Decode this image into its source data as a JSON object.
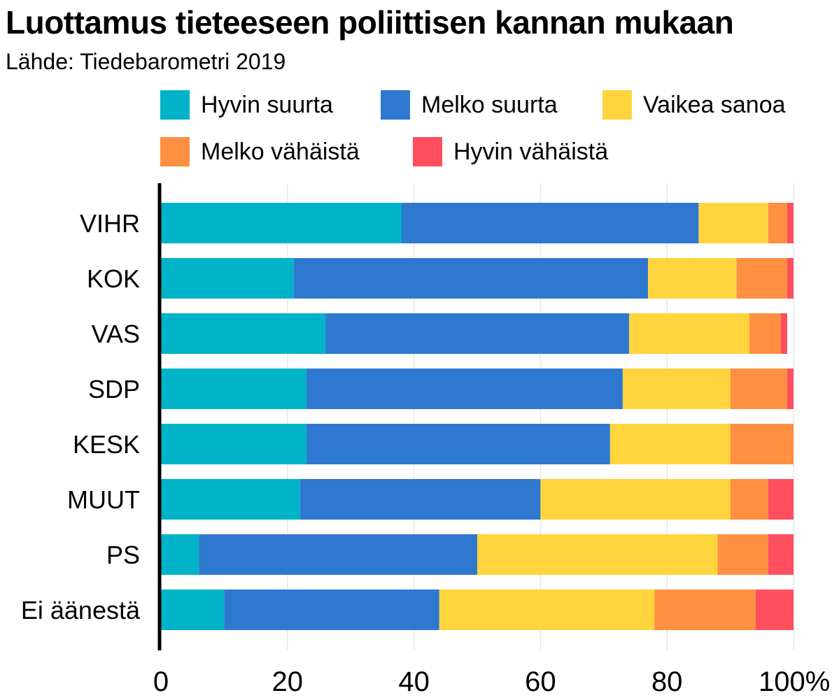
{
  "chart_data": {
    "type": "bar",
    "orientation": "horizontal",
    "stacked": true,
    "title": "Luottamus tieteeseen poliittisen kannan mukaan",
    "subtitle": "Lähde: Tiedebarometri 2019",
    "categories": [
      "VIHR",
      "KOK",
      "VAS",
      "SDP",
      "KESK",
      "MUUT",
      "PS",
      "Ei äänestä"
    ],
    "series": [
      {
        "name": "Hyvin suurta",
        "color": "#00B3C8",
        "values": [
          38,
          21,
          26,
          23,
          23,
          22,
          6,
          10
        ]
      },
      {
        "name": "Melko suurta",
        "color": "#2F78CF",
        "values": [
          47,
          56,
          48,
          50,
          48,
          38,
          44,
          34
        ]
      },
      {
        "name": "Vaikea sanoa",
        "color": "#FFD43D",
        "values": [
          11,
          14,
          19,
          17,
          19,
          30,
          38,
          34
        ]
      },
      {
        "name": "Melko vähäistä",
        "color": "#FF9042",
        "values": [
          3,
          8,
          5,
          9,
          10,
          6,
          8,
          16
        ]
      },
      {
        "name": "Hyvin vähäistä",
        "color": "#FF4F5E",
        "values": [
          1,
          1,
          1,
          1,
          0,
          4,
          4,
          6
        ]
      }
    ],
    "xlim": [
      0,
      100
    ],
    "xticks": [
      "0",
      "20",
      "40",
      "60",
      "80",
      "100%"
    ],
    "xtick_values": [
      0,
      20,
      40,
      60,
      80,
      100
    ],
    "grid": true,
    "legend_position": "top"
  }
}
